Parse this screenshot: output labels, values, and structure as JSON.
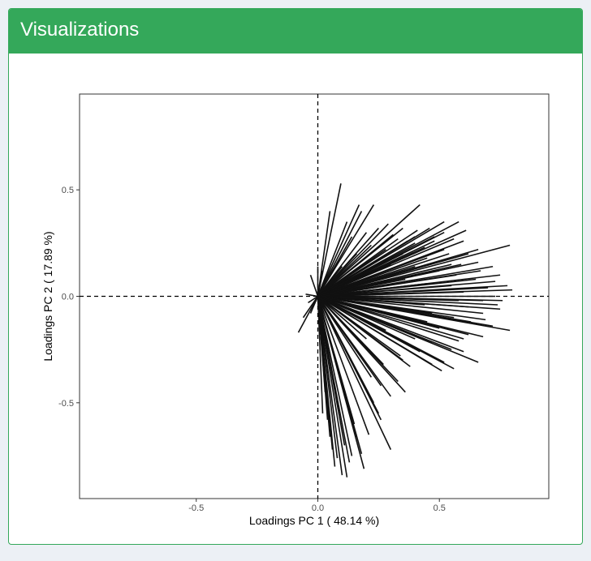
{
  "panel": {
    "title": "Visualizations"
  },
  "colors": {
    "header": "#34a85a",
    "page_background": "#ecf0f5",
    "lines": "#111111",
    "axis_text": "#4d4d4d"
  },
  "chart_data": {
    "type": "line",
    "subtype": "pca-loadings-biplot",
    "title": "",
    "xlabel": "Loadings PC 1 ( 48.14 %)",
    "ylabel": "Loadings PC 2 ( 17.89 %)",
    "xlim": [
      -0.98,
      0.95
    ],
    "ylim": [
      -0.95,
      0.95
    ],
    "xticks": [
      -0.5,
      0.0,
      0.5
    ],
    "xtick_labels": [
      "-0.5",
      "0.0",
      "0.5"
    ],
    "yticks": [
      -0.5,
      0.0,
      0.5
    ],
    "ytick_labels": [
      "-0.5",
      "0.0",
      "0.5"
    ],
    "grid": false,
    "reference_lines": "dashed lines at x = 0 and y = 0",
    "segment_origin": [
      0,
      0
    ],
    "series": [
      {
        "values": [
          [
            0.095,
            0.53
          ],
          [
            0.17,
            0.43
          ],
          [
            0.23,
            0.43
          ],
          [
            0.42,
            0.43
          ],
          [
            0.18,
            0.4
          ],
          [
            0.05,
            0.4
          ],
          [
            0.29,
            0.34
          ],
          [
            0.52,
            0.35
          ],
          [
            0.58,
            0.35
          ],
          [
            0.61,
            0.31
          ],
          [
            0.46,
            0.32
          ],
          [
            0.52,
            0.3
          ],
          [
            0.4,
            0.28
          ],
          [
            0.48,
            0.26
          ],
          [
            0.25,
            0.32
          ],
          [
            0.79,
            0.24
          ],
          [
            0.66,
            0.22
          ],
          [
            0.6,
            0.26
          ],
          [
            0.56,
            0.27
          ],
          [
            0.33,
            0.27
          ],
          [
            0.12,
            0.35
          ],
          [
            0.14,
            0.28
          ],
          [
            0.2,
            0.3
          ],
          [
            0.31,
            0.29
          ],
          [
            0.37,
            0.26
          ],
          [
            0.44,
            0.23
          ],
          [
            0.59,
            0.15
          ],
          [
            0.72,
            0.14
          ],
          [
            0.75,
            0.1
          ],
          [
            0.78,
            0.05
          ],
          [
            0.8,
            0.03
          ],
          [
            0.76,
            -0.02
          ],
          [
            0.68,
            -0.08
          ],
          [
            0.69,
            -0.11
          ],
          [
            0.79,
            -0.16
          ],
          [
            0.62,
            -0.18
          ],
          [
            0.72,
            -0.14
          ],
          [
            0.68,
            -0.19
          ],
          [
            0.66,
            -0.31
          ],
          [
            0.6,
            -0.2
          ],
          [
            0.55,
            -0.25
          ],
          [
            0.58,
            -0.21
          ],
          [
            0.52,
            -0.31
          ],
          [
            0.51,
            -0.35
          ],
          [
            0.56,
            -0.34
          ],
          [
            0.38,
            -0.33
          ],
          [
            0.42,
            -0.26
          ],
          [
            0.27,
            -0.32
          ],
          [
            0.36,
            -0.45
          ],
          [
            0.34,
            -0.28
          ],
          [
            0.3,
            -0.47
          ],
          [
            0.22,
            -0.38
          ],
          [
            0.3,
            -0.72
          ],
          [
            0.26,
            -0.58
          ],
          [
            0.21,
            -0.65
          ],
          [
            0.25,
            -0.55
          ],
          [
            0.18,
            -0.74
          ],
          [
            0.19,
            -0.81
          ],
          [
            0.14,
            -0.75
          ],
          [
            0.12,
            -0.85
          ],
          [
            0.1,
            -0.84
          ],
          [
            0.08,
            -0.76
          ],
          [
            0.07,
            -0.8
          ],
          [
            0.11,
            -0.7
          ],
          [
            0.05,
            -0.66
          ],
          [
            0.02,
            -0.55
          ],
          [
            0.15,
            -0.6
          ],
          [
            0.35,
            -0.3
          ],
          [
            0.47,
            -0.08
          ],
          [
            0.6,
            0.02
          ],
          [
            0.7,
            0.04
          ],
          [
            0.65,
            0.08
          ],
          [
            0.57,
            0.1
          ],
          [
            0.5,
            0.12
          ],
          [
            0.45,
            0.06
          ],
          [
            0.4,
            0.14
          ],
          [
            0.3,
            0.15
          ],
          [
            0.44,
            -0.04
          ],
          [
            0.5,
            -0.15
          ],
          [
            0.63,
            -0.12
          ],
          [
            0.75,
            -0.06
          ],
          [
            0.73,
            0.0
          ],
          [
            0.67,
            0.12
          ],
          [
            0.54,
            0.2
          ],
          [
            0.45,
            0.18
          ],
          [
            0.35,
            0.2
          ],
          [
            0.28,
            0.22
          ],
          [
            0.22,
            0.24
          ],
          [
            0.16,
            0.2
          ],
          [
            0.1,
            0.14
          ],
          [
            0.62,
            -0.05
          ],
          [
            0.4,
            -0.2
          ],
          [
            0.33,
            -0.4
          ],
          [
            0.28,
            -0.16
          ],
          [
            0.45,
            -0.12
          ],
          [
            0.66,
            0.16
          ],
          [
            0.52,
            0.22
          ],
          [
            0.55,
            0.05
          ],
          [
            0.36,
            0.08
          ],
          [
            0.25,
            0.1
          ],
          [
            0.58,
            -0.02
          ],
          [
            0.47,
            -0.22
          ],
          [
            0.4,
            0.25
          ],
          [
            0.48,
            0.28
          ],
          [
            0.62,
            0.2
          ],
          [
            0.73,
            0.07
          ],
          [
            0.74,
            -0.04
          ],
          [
            0.6,
            -0.26
          ],
          [
            0.47,
            -0.32
          ],
          [
            0.26,
            -0.42
          ],
          [
            0.23,
            -0.5
          ],
          [
            0.16,
            -0.66
          ],
          [
            0.13,
            -0.78
          ],
          [
            0.06,
            -0.72
          ],
          [
            0.04,
            -0.58
          ],
          [
            0.03,
            -0.45
          ],
          [
            0.01,
            -0.18
          ],
          [
            0.0,
            0.14
          ],
          [
            -0.03,
            0.1
          ],
          [
            0.02,
            0.12
          ],
          [
            -0.05,
            0.01
          ],
          [
            -0.04,
            -0.03
          ],
          [
            -0.06,
            -0.1
          ],
          [
            -0.08,
            -0.17
          ],
          [
            -0.03,
            -0.08
          ],
          [
            0.2,
            -0.2
          ],
          [
            0.56,
            -0.1
          ],
          [
            0.68,
            -0.02
          ],
          [
            0.55,
            0.15
          ],
          [
            0.35,
            0.32
          ],
          [
            0.41,
            0.31
          ],
          [
            0.26,
            0.16
          ]
        ]
      }
    ]
  }
}
